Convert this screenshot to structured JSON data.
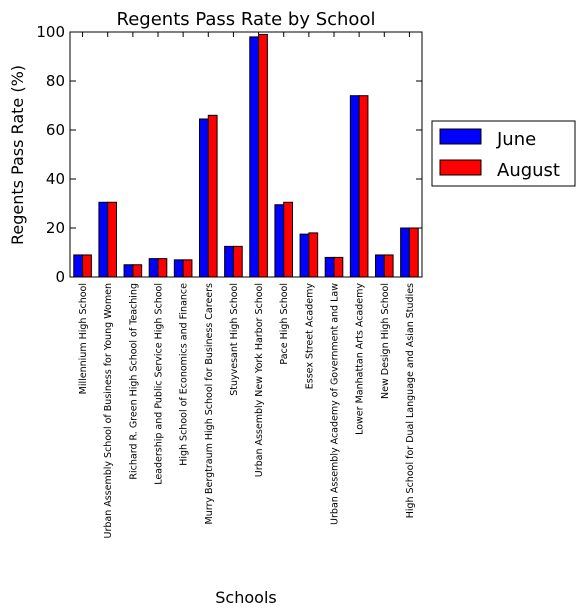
{
  "chart_data": {
    "type": "bar",
    "title": "Regents Pass Rate by School",
    "xlabel": "Schools",
    "ylabel": "Regents Pass Rate (%)",
    "ylim": [
      0,
      100
    ],
    "yticks": [
      0,
      20,
      40,
      60,
      80,
      100
    ],
    "grid": false,
    "legend_position": "right",
    "categories": [
      "Millennium High School",
      "Urban Assembly School of Business for Young Women",
      "Richard R. Green High School of Teaching",
      "Leadership and Public Service High School",
      "High School of Economics and Finance",
      "Murry Bergtraum High School for Business Careers",
      "Stuyvesant High School",
      "Urban Assembly New York Harbor School",
      "Pace High School",
      "Essex Street Academy",
      "Urban Assembly Academy of Government and Law",
      "Lower Manhattan Arts Academy",
      "New Design High School",
      "High School for Dual Language and Asian Studies"
    ],
    "series": [
      {
        "name": "June",
        "color": "#0000ff",
        "values": [
          9,
          30.5,
          5,
          7.5,
          7,
          64.5,
          12.5,
          98,
          29.5,
          17.5,
          8,
          74,
          9,
          20
        ]
      },
      {
        "name": "August",
        "color": "#ff0000",
        "values": [
          9,
          30.5,
          5,
          7.5,
          7,
          66,
          12.5,
          99,
          30.5,
          18,
          8,
          74,
          9,
          20
        ]
      }
    ]
  }
}
